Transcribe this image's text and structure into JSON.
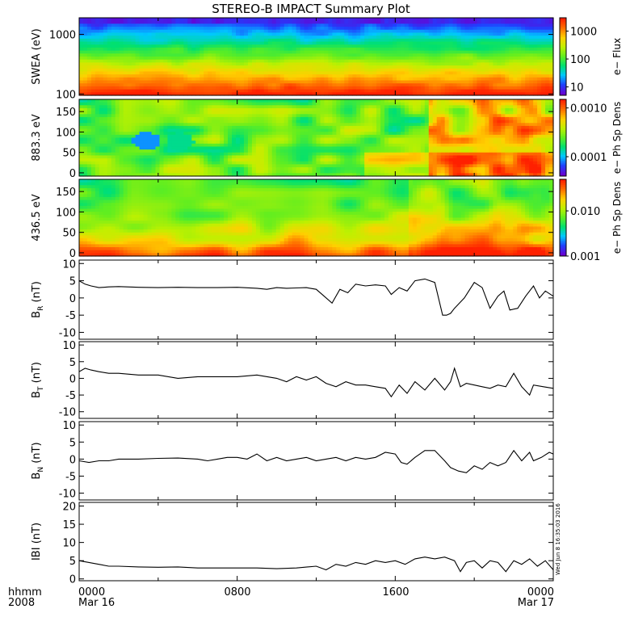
{
  "title": "STEREO-B IMPACT Summary Plot",
  "footer": {
    "left_top": "hhmm",
    "left_bottom": "2008",
    "x_ticks": [
      "0000",
      "0800",
      "1600",
      "0000"
    ],
    "x_dates": [
      "Mar 16",
      "",
      "",
      "Mar 17"
    ],
    "timestamp": "Wed Jun 8 16:35:03 2016"
  },
  "chart_data": [
    {
      "type": "heatmap",
      "name": "swea",
      "ylabel": "SWEA (eV)",
      "yscale": "log",
      "ylim": [
        95,
        1900
      ],
      "yticks": [
        {
          "v": 1000,
          "label": "1000"
        },
        {
          "v": 100,
          "label": "100"
        }
      ],
      "colorbar": {
        "label": "e− Flux",
        "scale": "log",
        "range": [
          5,
          3000
        ],
        "ticks": [
          {
            "v": 1000,
            "label": "1000"
          },
          {
            "v": 100,
            "label": "100"
          },
          {
            "v": 10,
            "label": "10"
          }
        ]
      },
      "colormap": [
        "#6a00d0",
        "#2040ff",
        "#00c8ff",
        "#00e070",
        "#60ee20",
        "#c0f000",
        "#ffd000",
        "#ff7000",
        "#ff2000"
      ]
    },
    {
      "type": "heatmap",
      "name": "pad_883",
      "ylabel": "883.3 eV",
      "ylim": [
        -8,
        180
      ],
      "yticks": [
        {
          "v": 0,
          "label": "0"
        },
        {
          "v": 50,
          "label": "50"
        },
        {
          "v": 100,
          "label": "100"
        },
        {
          "v": 150,
          "label": "150"
        }
      ],
      "colorbar": {
        "label": "e− Ph Sp Dens",
        "scale": "log",
        "range": [
          4e-05,
          0.0015
        ],
        "ticks": [
          {
            "v": 0.001,
            "label": "0.0010"
          },
          {
            "v": 0.0001,
            "label": "0.0001"
          }
        ]
      },
      "colormap": [
        "#6a00d0",
        "#2040ff",
        "#00c8ff",
        "#00e070",
        "#60ee20",
        "#c0f000",
        "#ffd000",
        "#ff7000",
        "#ff2000"
      ]
    },
    {
      "type": "heatmap",
      "name": "pad_436",
      "ylabel": "436.5 eV",
      "ylim": [
        -8,
        180
      ],
      "yticks": [
        {
          "v": 0,
          "label": "0"
        },
        {
          "v": 50,
          "label": "50"
        },
        {
          "v": 100,
          "label": "100"
        },
        {
          "v": 150,
          "label": "150"
        }
      ],
      "colorbar": {
        "label": "e− Ph Sp Dens",
        "scale": "log",
        "range": [
          0.001,
          0.05
        ],
        "ticks": [
          {
            "v": 0.01,
            "label": "0.010"
          },
          {
            "v": 0.001,
            "label": "0.001"
          }
        ]
      },
      "colormap": [
        "#6a00d0",
        "#2040ff",
        "#00c8ff",
        "#00e070",
        "#60ee20",
        "#c0f000",
        "#ffd000",
        "#ff7000",
        "#ff2000"
      ]
    },
    {
      "type": "line",
      "name": "br",
      "ylabel": "B",
      "ylabel_sub": "R",
      "ylabel_unit": " (nT)",
      "ylim": [
        -12,
        11
      ],
      "yticks": [
        10,
        5,
        0,
        -5,
        -10
      ],
      "xlim": [
        0,
        24
      ],
      "x": [
        0.0,
        0.3,
        0.6,
        1.0,
        1.5,
        2.0,
        3.0,
        4.0,
        5.0,
        6.0,
        7.0,
        8.0,
        9.0,
        9.5,
        10.0,
        10.5,
        11.0,
        11.5,
        12.0,
        12.4,
        12.8,
        13.2,
        13.6,
        14.0,
        14.5,
        15.0,
        15.5,
        15.8,
        16.2,
        16.6,
        17.0,
        17.5,
        18.0,
        18.4,
        18.6,
        18.8,
        19.0,
        19.5,
        20.0,
        20.4,
        20.8,
        21.2,
        21.5,
        21.8,
        22.2,
        22.6,
        23.0,
        23.3,
        23.6,
        24.0
      ],
      "y": [
        5,
        4,
        3.5,
        3,
        3.2,
        3.3,
        3.1,
        3.0,
        3.1,
        3.0,
        3.0,
        3.1,
        2.8,
        2.5,
        3.0,
        2.8,
        2.9,
        3.0,
        2.5,
        0.5,
        -1.5,
        2.5,
        1.5,
        4.0,
        3.5,
        3.8,
        3.5,
        1.0,
        3.0,
        2.0,
        5.0,
        5.5,
        4.5,
        -5.0,
        -5.0,
        -4.5,
        -3.0,
        0.0,
        4.5,
        3.0,
        -3.0,
        0.5,
        2.0,
        -3.5,
        -3.0,
        0.5,
        3.5,
        0.0,
        2.0,
        0.5
      ]
    },
    {
      "type": "line",
      "name": "bt",
      "ylabel": "B",
      "ylabel_sub": "T",
      "ylabel_unit": " (nT)",
      "ylim": [
        -12,
        11
      ],
      "yticks": [
        10,
        5,
        0,
        -5,
        -10
      ],
      "xlim": [
        0,
        24
      ],
      "x": [
        0.0,
        0.3,
        0.6,
        1.0,
        1.5,
        2.0,
        3.0,
        4.0,
        5.0,
        6.0,
        7.0,
        8.0,
        9.0,
        10.0,
        10.5,
        11.0,
        11.5,
        12.0,
        12.5,
        13.0,
        13.5,
        14.0,
        14.5,
        15.0,
        15.5,
        15.8,
        16.2,
        16.6,
        17.0,
        17.5,
        18.0,
        18.5,
        18.8,
        19.0,
        19.3,
        19.6,
        20.0,
        20.4,
        20.8,
        21.2,
        21.6,
        22.0,
        22.4,
        22.8,
        23.0,
        23.5,
        24.0
      ],
      "y": [
        2.0,
        3.0,
        2.5,
        2.0,
        1.5,
        1.5,
        1.0,
        1.0,
        0.0,
        0.5,
        0.5,
        0.5,
        1.0,
        0.0,
        -1.0,
        0.5,
        -0.5,
        0.5,
        -1.5,
        -2.5,
        -1.0,
        -2.0,
        -2.0,
        -2.5,
        -3.0,
        -5.5,
        -2.0,
        -4.5,
        -1.0,
        -3.5,
        0.0,
        -3.5,
        -1.0,
        3.0,
        -2.5,
        -1.5,
        -2.0,
        -2.5,
        -3.0,
        -2.0,
        -2.5,
        1.5,
        -2.5,
        -5.0,
        -2.0,
        -2.5,
        -3.0
      ]
    },
    {
      "type": "line",
      "name": "bn",
      "ylabel": "B",
      "ylabel_sub": "N",
      "ylabel_unit": " (nT)",
      "ylim": [
        -12,
        11
      ],
      "yticks": [
        10,
        5,
        0,
        -5,
        -10
      ],
      "xlim": [
        0,
        24
      ],
      "x": [
        0.0,
        0.5,
        1.0,
        1.5,
        2.0,
        3.0,
        4.0,
        5.0,
        6.0,
        6.5,
        7.0,
        7.5,
        8.0,
        8.5,
        9.0,
        9.5,
        10.0,
        10.5,
        11.0,
        11.5,
        12.0,
        12.5,
        13.0,
        13.5,
        14.0,
        14.5,
        15.0,
        15.5,
        16.0,
        16.3,
        16.6,
        17.0,
        17.5,
        18.0,
        18.5,
        18.8,
        19.2,
        19.6,
        20.0,
        20.4,
        20.8,
        21.2,
        21.6,
        22.0,
        22.4,
        22.8,
        23.0,
        23.4,
        23.8,
        24.0
      ],
      "y": [
        -0.5,
        -1.0,
        -0.5,
        -0.5,
        0.0,
        0.0,
        0.2,
        0.3,
        0.0,
        -0.5,
        0.0,
        0.5,
        0.5,
        0.0,
        1.5,
        -0.5,
        0.5,
        -0.5,
        0.0,
        0.5,
        -0.5,
        0.0,
        0.5,
        -0.5,
        0.5,
        0.0,
        0.5,
        2.0,
        1.5,
        -1.0,
        -1.5,
        0.5,
        2.5,
        2.5,
        -0.5,
        -2.5,
        -3.5,
        -4.0,
        -2.0,
        -3.0,
        -1.0,
        -2.0,
        -1.0,
        2.5,
        -0.5,
        2.0,
        -0.5,
        0.5,
        2.0,
        1.5
      ]
    },
    {
      "type": "line",
      "name": "bmag",
      "ylabel": "IBI",
      "ylabel_sub": "",
      "ylabel_unit": " (nT)",
      "ylim": [
        -0.5,
        21
      ],
      "yticks": [
        20,
        15,
        10,
        5,
        0
      ],
      "xlim": [
        0,
        24
      ],
      "x": [
        0.0,
        0.5,
        1.0,
        1.5,
        2.0,
        3.0,
        4.0,
        5.0,
        6.0,
        7.0,
        8.0,
        9.0,
        10.0,
        11.0,
        12.0,
        12.5,
        13.0,
        13.5,
        14.0,
        14.5,
        15.0,
        15.5,
        16.0,
        16.5,
        17.0,
        17.5,
        18.0,
        18.5,
        19.0,
        19.3,
        19.6,
        20.0,
        20.4,
        20.8,
        21.2,
        21.6,
        22.0,
        22.4,
        22.8,
        23.2,
        23.6,
        24.0
      ],
      "y": [
        5.0,
        4.5,
        4.0,
        3.5,
        3.5,
        3.3,
        3.2,
        3.3,
        3.0,
        3.0,
        3.0,
        3.0,
        2.8,
        3.0,
        3.5,
        2.5,
        4.0,
        3.5,
        4.5,
        4.0,
        5.0,
        4.5,
        5.0,
        4.0,
        5.5,
        6.0,
        5.5,
        6.0,
        5.0,
        2.0,
        4.5,
        5.0,
        3.0,
        5.0,
        4.5,
        2.0,
        5.0,
        4.0,
        5.5,
        3.5,
        5.0,
        2.5
      ]
    }
  ]
}
